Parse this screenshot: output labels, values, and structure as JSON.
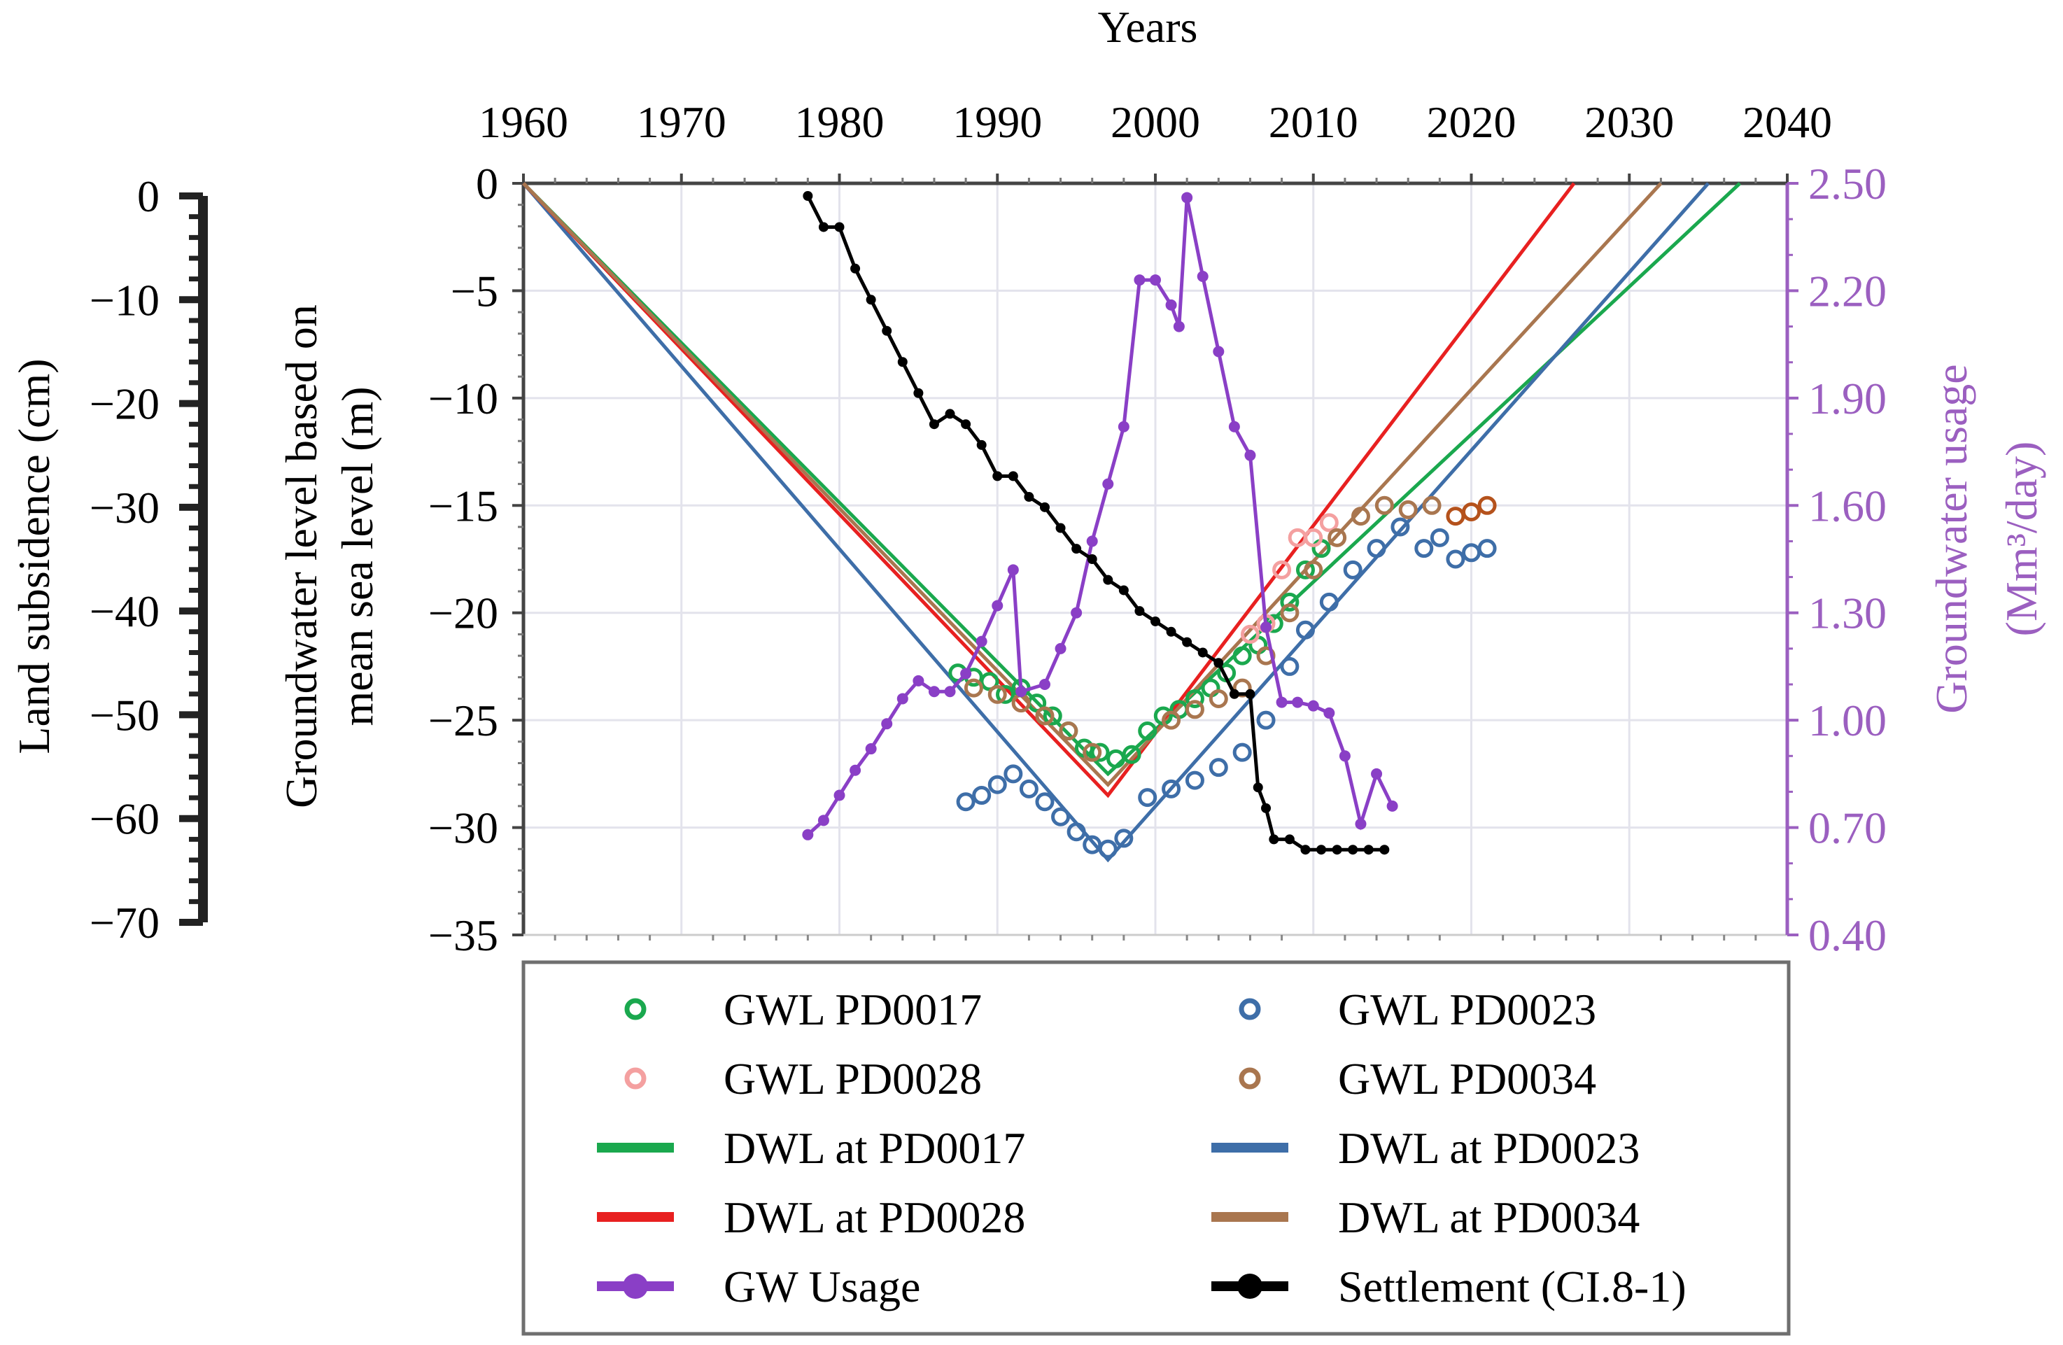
{
  "chart_data": {
    "type": "line",
    "title": "",
    "x_axis_top": {
      "label": "Years",
      "range": [
        1960,
        2040
      ],
      "ticks": [
        "1960",
        "1970",
        "1980",
        "1990",
        "2000",
        "2010",
        "2020",
        "2030",
        "2040"
      ]
    },
    "y_axis_left_subsidence": {
      "label": "Land subsidence (cm)",
      "range": [
        -70,
        0
      ],
      "ticks": [
        "0",
        "−10",
        "−20",
        "−30",
        "−40",
        "−50",
        "−60",
        "−70"
      ]
    },
    "y_axis_left_gwl": {
      "label_line1": "Groundwater level based on",
      "label_line2": "mean sea level (m)",
      "range": [
        -35,
        0
      ],
      "ticks": [
        "0",
        "−5",
        "−10",
        "−15",
        "−20",
        "−25",
        "−30",
        "−35"
      ]
    },
    "y_axis_right_usage": {
      "label_line1": "Groundwater usage",
      "label_line2": "(Mm³/day)",
      "range": [
        0.4,
        2.5
      ],
      "ticks": [
        "2.50",
        "2.20",
        "1.90",
        "1.60",
        "1.30",
        "1.00",
        "0.70",
        "0.40"
      ]
    },
    "colors": {
      "PD0017": "#1aa84e",
      "PD0023": "#3e6ea8",
      "PD0028": "#e82020",
      "PD0028_obs": "#f4a0a0",
      "PD0034": "#a9764f",
      "usage": "#8a3fc6",
      "settlement": "#000000",
      "right_axis": "#9b5fc0",
      "recent_PD0034": "#b5521c"
    },
    "dwl_series": [
      {
        "name": "DWL at PD0017",
        "color_key": "PD0017",
        "points": [
          [
            1960,
            0
          ],
          [
            1997,
            -27.5
          ],
          [
            2037,
            0
          ]
        ]
      },
      {
        "name": "DWL at PD0023",
        "color_key": "PD0023",
        "points": [
          [
            1960,
            0
          ],
          [
            1997,
            -31.5
          ],
          [
            2035,
            0
          ]
        ]
      },
      {
        "name": "DWL at PD0028",
        "color_key": "PD0028",
        "points": [
          [
            1960,
            0
          ],
          [
            1997,
            -28.5
          ],
          [
            2026.5,
            0
          ]
        ]
      },
      {
        "name": "DWL at PD0034",
        "color_key": "PD0034",
        "points": [
          [
            1960,
            0
          ],
          [
            1997,
            -28
          ],
          [
            2032,
            0
          ]
        ]
      }
    ],
    "gwl_series": [
      {
        "name": "GWL PD0017",
        "color_key": "PD0017",
        "points": [
          [
            1987.5,
            -22.8
          ],
          [
            1988.5,
            -23.0
          ],
          [
            1989.5,
            -23.2
          ],
          [
            1990.5,
            -23.8
          ],
          [
            1991.5,
            -23.5
          ],
          [
            1992.5,
            -24.2
          ],
          [
            1993.5,
            -24.8
          ],
          [
            1994.5,
            -25.5
          ],
          [
            1995.5,
            -26.3
          ],
          [
            1996.5,
            -26.5
          ],
          [
            1997.5,
            -26.8
          ],
          [
            1998.5,
            -26.6
          ],
          [
            1999.5,
            -25.5
          ],
          [
            2000.5,
            -24.8
          ],
          [
            2001.5,
            -24.5
          ],
          [
            2002.5,
            -24.0
          ],
          [
            2003.5,
            -23.5
          ],
          [
            2004.5,
            -22.8
          ],
          [
            2005.5,
            -22.0
          ],
          [
            2006.5,
            -21.5
          ],
          [
            2007.5,
            -20.5
          ],
          [
            2008.5,
            -19.5
          ],
          [
            2009.5,
            -18.0
          ],
          [
            2010.5,
            -17.0
          ]
        ]
      },
      {
        "name": "GWL PD0023",
        "color_key": "PD0023",
        "points": [
          [
            1988,
            -28.8
          ],
          [
            1989,
            -28.5
          ],
          [
            1990,
            -28.0
          ],
          [
            1991,
            -27.5
          ],
          [
            1992,
            -28.2
          ],
          [
            1993,
            -28.8
          ],
          [
            1994,
            -29.5
          ],
          [
            1995,
            -30.2
          ],
          [
            1996,
            -30.8
          ],
          [
            1997,
            -31.0
          ],
          [
            1998,
            -30.5
          ],
          [
            1999.5,
            -28.6
          ],
          [
            2001,
            -28.2
          ],
          [
            2002.5,
            -27.8
          ],
          [
            2004,
            -27.2
          ],
          [
            2005.5,
            -26.5
          ],
          [
            2007,
            -25.0
          ],
          [
            2008.5,
            -22.5
          ],
          [
            2009.5,
            -20.8
          ],
          [
            2011,
            -19.5
          ],
          [
            2012.5,
            -18.0
          ],
          [
            2014,
            -17.0
          ],
          [
            2015.5,
            -16.0
          ],
          [
            2017,
            -17.0
          ],
          [
            2018,
            -16.5
          ],
          [
            2019,
            -17.5
          ],
          [
            2020,
            -17.2
          ],
          [
            2021,
            -17.0
          ]
        ]
      },
      {
        "name": "GWL PD0028",
        "color_key": "PD0028_obs",
        "points": [
          [
            2006,
            -21.0
          ],
          [
            2007,
            -20.5
          ],
          [
            2008,
            -18.0
          ],
          [
            2009,
            -16.5
          ],
          [
            2010,
            -16.5
          ],
          [
            2011,
            -15.8
          ]
        ]
      },
      {
        "name": "GWL PD0034",
        "color_key": "PD0034",
        "points": [
          [
            1988.5,
            -23.5
          ],
          [
            1990,
            -23.8
          ],
          [
            1991.5,
            -24.2
          ],
          [
            1993,
            -24.8
          ],
          [
            1994.5,
            -25.5
          ],
          [
            1996,
            -26.5
          ],
          [
            2001,
            -25.0
          ],
          [
            2002.5,
            -24.5
          ],
          [
            2004,
            -24.0
          ],
          [
            2005.5,
            -23.5
          ],
          [
            2007,
            -22.0
          ],
          [
            2008.5,
            -20.0
          ],
          [
            2010,
            -18.0
          ],
          [
            2011.5,
            -16.5
          ],
          [
            2013,
            -15.5
          ],
          [
            2014.5,
            -15.0
          ],
          [
            2016,
            -15.2
          ],
          [
            2017.5,
            -15.0
          ],
          [
            2019,
            -15.5
          ],
          [
            2020,
            -15.3
          ],
          [
            2021,
            -15.0
          ]
        ]
      }
    ],
    "gw_usage": {
      "name": "GW Usage",
      "color_key": "usage",
      "points": [
        [
          1978,
          0.68
        ],
        [
          1979,
          0.72
        ],
        [
          1980,
          0.79
        ],
        [
          1981,
          0.86
        ],
        [
          1982,
          0.92
        ],
        [
          1983,
          0.99
        ],
        [
          1984,
          1.06
        ],
        [
          1985,
          1.11
        ],
        [
          1986,
          1.08
        ],
        [
          1987,
          1.08
        ],
        [
          1988,
          1.13
        ],
        [
          1989,
          1.22
        ],
        [
          1990,
          1.32
        ],
        [
          1991,
          1.42
        ],
        [
          1991.5,
          1.08
        ],
        [
          1993,
          1.1
        ],
        [
          1994,
          1.2
        ],
        [
          1995,
          1.3
        ],
        [
          1996,
          1.5
        ],
        [
          1997,
          1.66
        ],
        [
          1998,
          1.82
        ],
        [
          1999,
          2.23
        ],
        [
          2000,
          2.23
        ],
        [
          2001,
          2.16
        ],
        [
          2001.5,
          2.1
        ],
        [
          2002,
          2.46
        ],
        [
          2003,
          2.24
        ],
        [
          2004,
          2.03
        ],
        [
          2005,
          1.82
        ],
        [
          2006,
          1.74
        ],
        [
          2007,
          1.26
        ],
        [
          2008,
          1.05
        ],
        [
          2009,
          1.05
        ],
        [
          2010,
          1.04
        ],
        [
          2011,
          1.02
        ],
        [
          2012,
          0.9
        ],
        [
          2013,
          0.71
        ],
        [
          2014,
          0.85
        ],
        [
          2015,
          0.76
        ]
      ]
    },
    "settlement": {
      "name": "Settlement (CI.8-1)",
      "color_key": "settlement",
      "points": [
        [
          1978,
          0
        ],
        [
          1979,
          -3
        ],
        [
          1980,
          -3
        ],
        [
          1981,
          -7
        ],
        [
          1982,
          -10
        ],
        [
          1983,
          -13
        ],
        [
          1984,
          -16
        ],
        [
          1985,
          -19
        ],
        [
          1986,
          -22
        ],
        [
          1987,
          -21
        ],
        [
          1988,
          -22
        ],
        [
          1989,
          -24
        ],
        [
          1990,
          -27
        ],
        [
          1991,
          -27
        ],
        [
          1992,
          -29
        ],
        [
          1993,
          -30
        ],
        [
          1994,
          -32
        ],
        [
          1995,
          -34
        ],
        [
          1996,
          -35
        ],
        [
          1997,
          -37
        ],
        [
          1998,
          -38
        ],
        [
          1999,
          -40
        ],
        [
          2000,
          -41
        ],
        [
          2001,
          -42
        ],
        [
          2002,
          -43
        ],
        [
          2003,
          -44
        ],
        [
          2004,
          -45
        ],
        [
          2005,
          -48
        ],
        [
          2006,
          -48
        ],
        [
          2006.5,
          -57
        ],
        [
          2007,
          -59
        ],
        [
          2007.5,
          -62
        ],
        [
          2008.5,
          -62
        ],
        [
          2009.5,
          -63
        ],
        [
          2010.5,
          -63
        ],
        [
          2011.5,
          -63
        ],
        [
          2012.5,
          -63
        ],
        [
          2013.5,
          -63
        ],
        [
          2014.5,
          -63
        ]
      ]
    },
    "legend": [
      {
        "label": "GWL PD0017",
        "marker": "circle",
        "color_key": "PD0017"
      },
      {
        "label": "GWL PD0023",
        "marker": "circle",
        "color_key": "PD0023"
      },
      {
        "label": "GWL PD0028",
        "marker": "circle",
        "color_key": "PD0028_obs"
      },
      {
        "label": "GWL PD0034",
        "marker": "circle",
        "color_key": "PD0034"
      },
      {
        "label": "DWL at PD0017",
        "marker": "line",
        "color_key": "PD0017"
      },
      {
        "label": "DWL at PD0023",
        "marker": "line",
        "color_key": "PD0023"
      },
      {
        "label": "DWL at PD0028",
        "marker": "line",
        "color_key": "PD0028"
      },
      {
        "label": "DWL at PD0034",
        "marker": "line",
        "color_key": "PD0034"
      },
      {
        "label": "GW Usage",
        "marker": "line-dot",
        "color_key": "usage"
      },
      {
        "label": "Settlement (CI.8-1)",
        "marker": "line-dot",
        "color_key": "settlement"
      }
    ],
    "grid": true
  }
}
